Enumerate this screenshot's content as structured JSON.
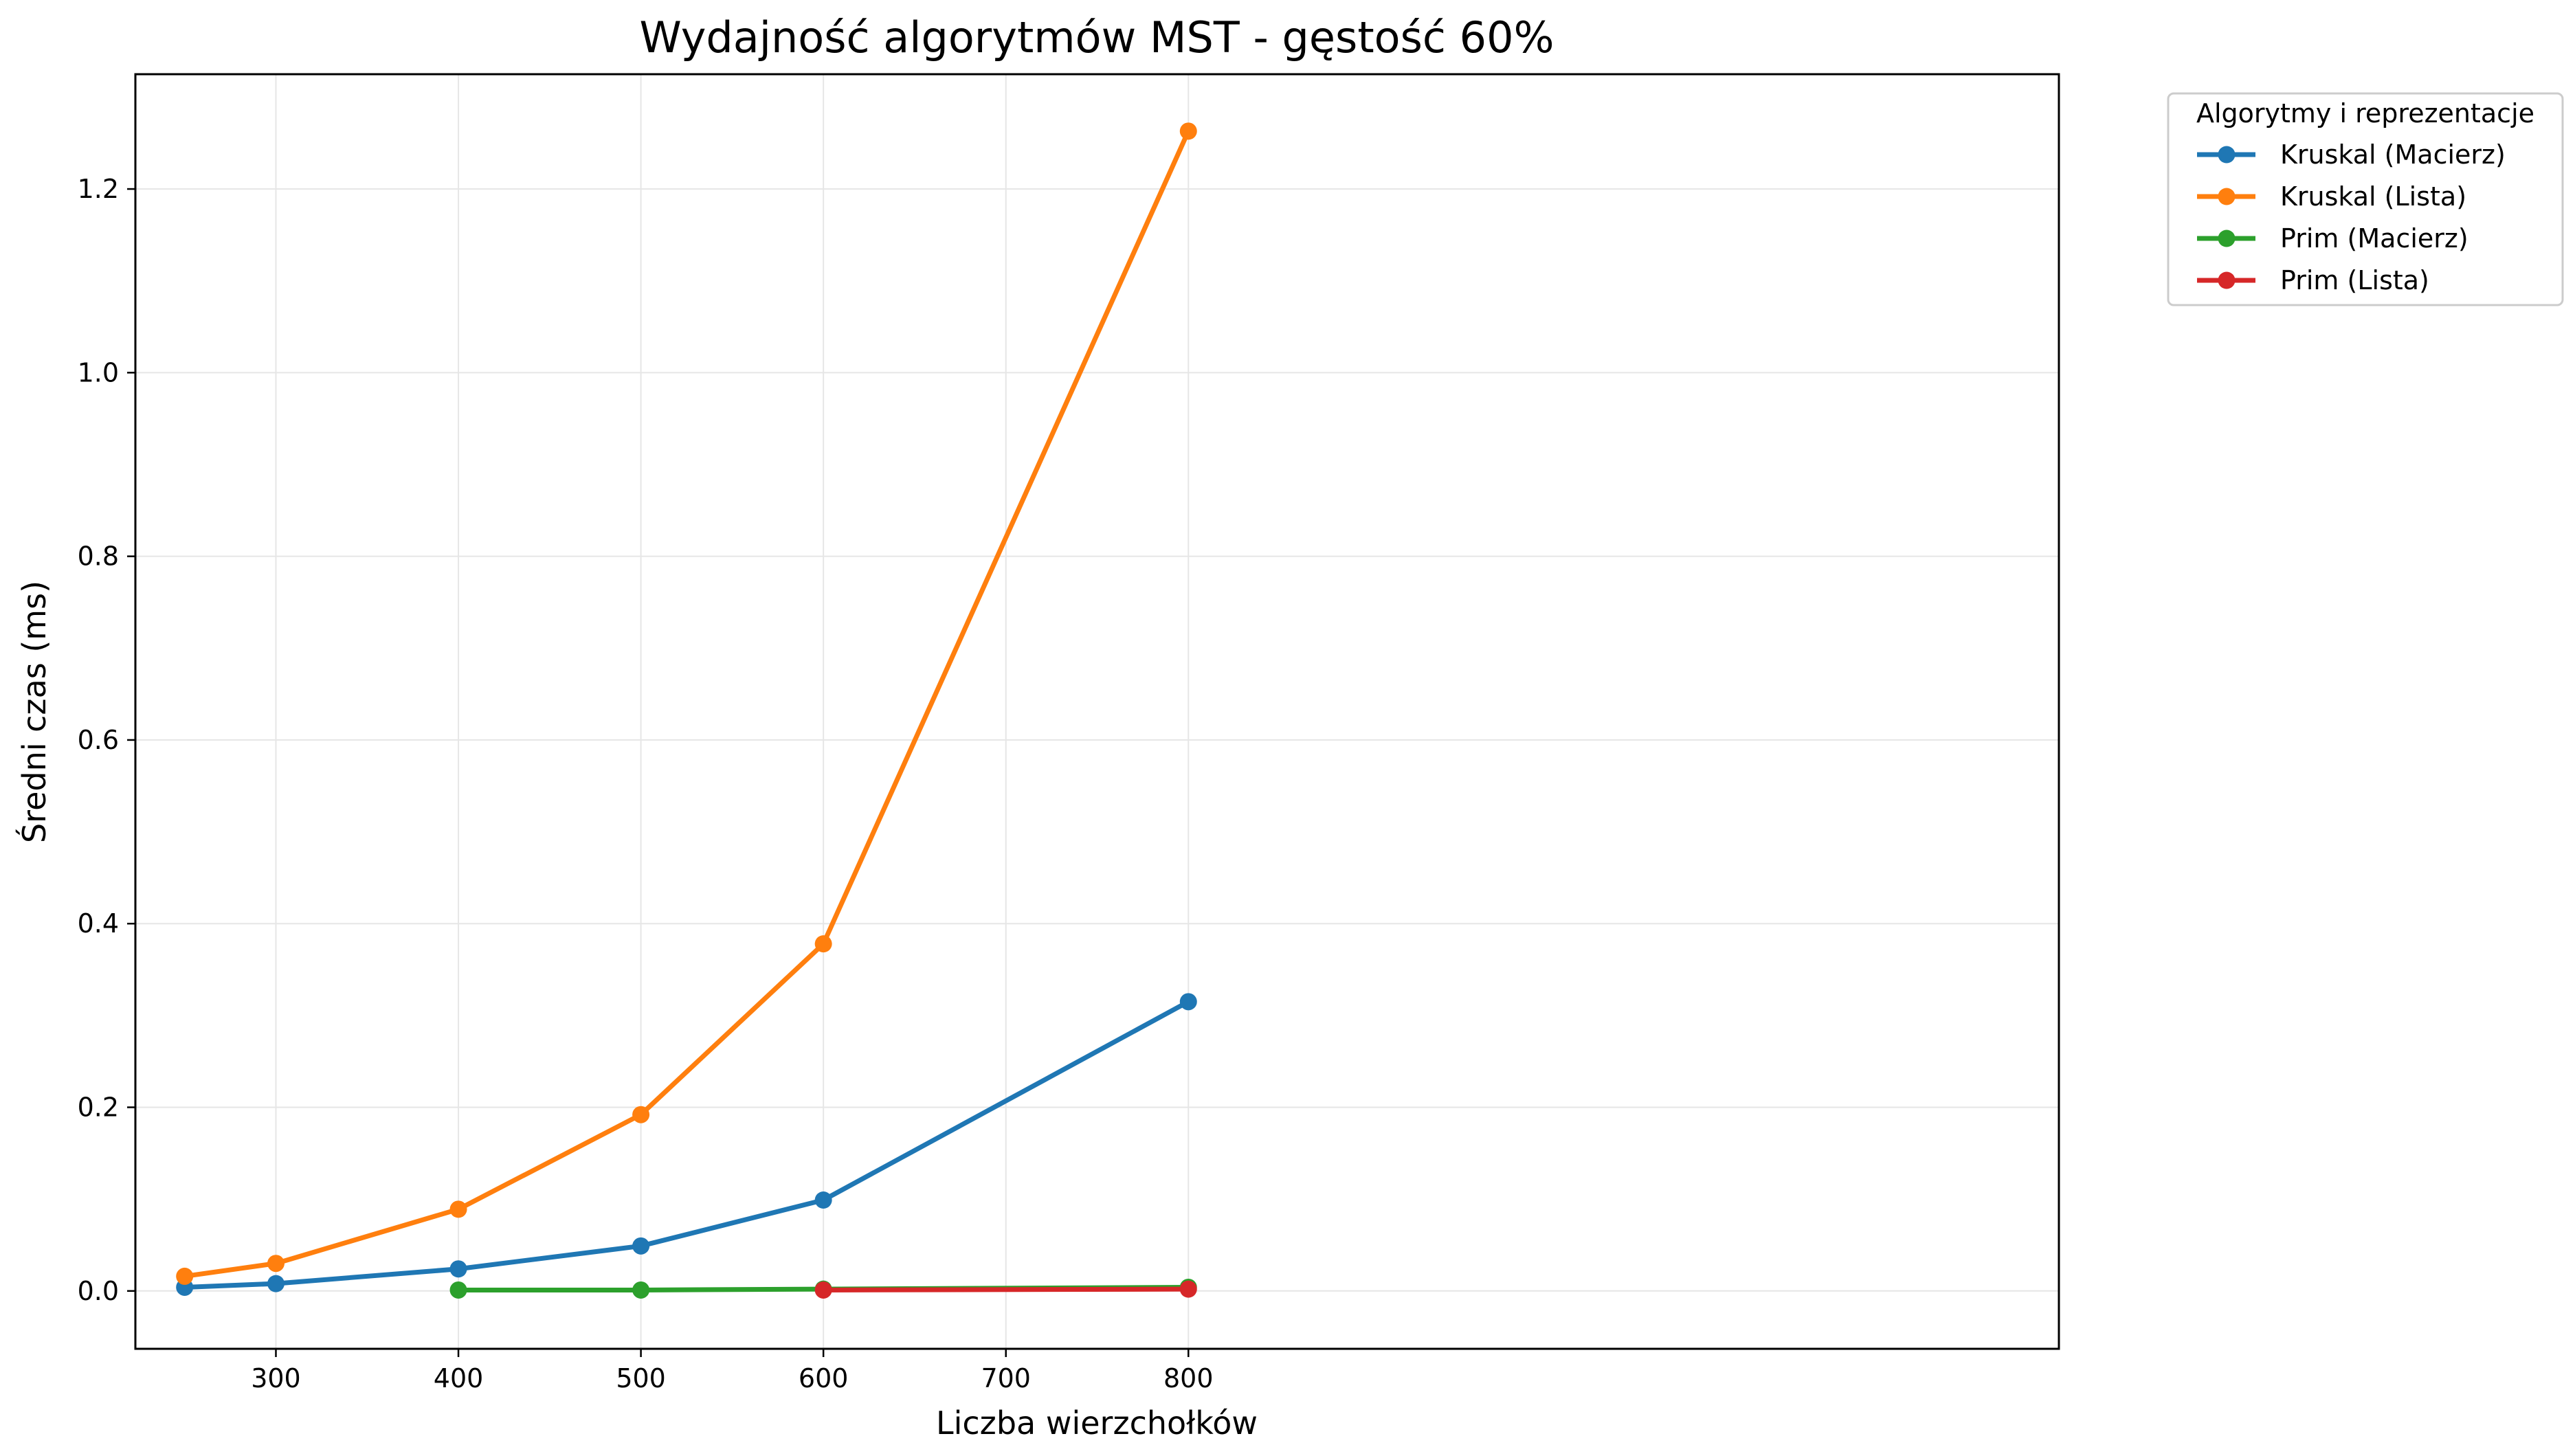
{
  "chart_data": {
    "type": "line",
    "title": "Wydajność algorytmów MST - gęstość 60%",
    "xlabel": "Liczba wierzchołków",
    "ylabel": "Średni czas (ms)",
    "xlim": [
      223,
      1277
    ],
    "ylim": [
      -0.063,
      1.325
    ],
    "xticks": [
      300,
      400,
      500,
      600,
      700,
      800
    ],
    "yticks": [
      0.0,
      0.2,
      0.4,
      0.6,
      0.8,
      1.0,
      1.2
    ],
    "xtick_labels": [
      "300",
      "400",
      "500",
      "600",
      "700",
      "800"
    ],
    "ytick_labels": [
      "0.0",
      "0.2",
      "0.4",
      "0.6",
      "0.8",
      "1.0",
      "1.2"
    ],
    "grid": true,
    "legend": {
      "title": "Algorytmy i reprezentacje",
      "placement": "outside-top-right"
    },
    "series": [
      {
        "name": "Kruskal (Macierz)",
        "color": "#1f77b4",
        "x": [
          250,
          300,
          400,
          500,
          600,
          800
        ],
        "y": [
          0.004,
          0.008,
          0.024,
          0.049,
          0.099,
          0.315
        ]
      },
      {
        "name": "Kruskal (Lista)",
        "color": "#ff7f0e",
        "x": [
          250,
          300,
          400,
          500,
          600,
          800
        ],
        "y": [
          0.016,
          0.03,
          0.089,
          0.192,
          0.378,
          1.263
        ]
      },
      {
        "name": "Prim (Macierz)",
        "color": "#2ca02c",
        "x": [
          400,
          500,
          600,
          800
        ],
        "y": [
          0.001,
          0.001,
          0.002,
          0.004
        ]
      },
      {
        "name": "Prim (Lista)",
        "color": "#d62728",
        "x": [
          600,
          800
        ],
        "y": [
          0.001,
          0.002
        ]
      }
    ]
  }
}
